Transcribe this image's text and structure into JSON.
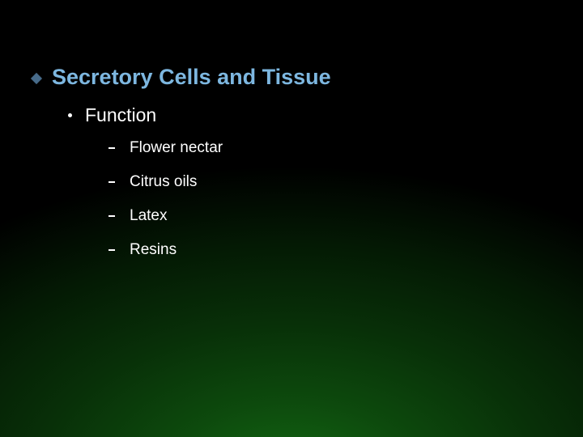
{
  "slide": {
    "title": "Secretory Cells and Tissue",
    "title_color": "#7db7e0",
    "body_color": "#ffffff",
    "title_fontsize": 27,
    "sub1_fontsize": 23,
    "sub2_fontsize": 19,
    "background": {
      "type": "radial-gradient",
      "center_color": "#136a13",
      "outer_color": "#000000"
    },
    "bullets": {
      "level0": {
        "shape": "diamond",
        "color": "#476b8a"
      },
      "level1": {
        "shape": "dot",
        "color": "#ffffff"
      },
      "level2": {
        "shape": "dash",
        "color": "#ffffff"
      }
    },
    "sub1": {
      "label": "Function",
      "items": [
        "Flower nectar",
        "Citrus oils",
        "Latex",
        "Resins"
      ]
    }
  }
}
